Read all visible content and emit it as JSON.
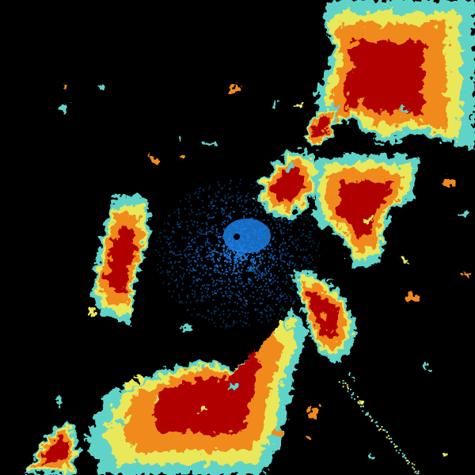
{
  "radar": {
    "background": "#000000",
    "palette": {
      "clear_air": "#1a6fd1",
      "light": "#5fd3c8",
      "moderate_low": "#e8e85a",
      "moderate": "#f08a1e",
      "heavy": "#b00000"
    },
    "site_marker_color": "#000000"
  }
}
